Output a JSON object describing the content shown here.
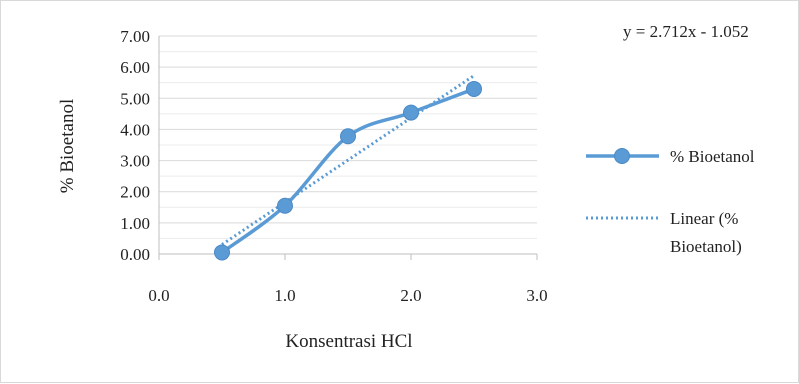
{
  "chart_data": {
    "type": "line",
    "xlabel": "Konsentrasi HCl",
    "ylabel": "% Bioetanol",
    "xlim": [
      0,
      3
    ],
    "ylim": [
      0,
      7
    ],
    "x_ticks": [
      "0.0",
      "1.0",
      "2.0",
      "3.0"
    ],
    "y_ticks": [
      "0.00",
      "1.00",
      "2.00",
      "3.00",
      "4.00",
      "5.00",
      "6.00",
      "7.00"
    ],
    "grid": "horizontal",
    "legend_position": "right",
    "series": [
      {
        "name": "% Bioetanol",
        "style": "smooth-line-with-markers",
        "color": "#5b9bd5",
        "x": [
          0.5,
          1.0,
          1.5,
          2.0,
          2.5
        ],
        "y": [
          0.05,
          1.55,
          3.78,
          4.54,
          5.3
        ]
      }
    ],
    "trendline": {
      "legend_line1": "Linear (%",
      "legend_line2": "Bioetanol)",
      "equation": "y = 2.712x - 1.052",
      "slope": 2.712,
      "intercept": -1.052,
      "x_range": [
        0.5,
        2.5
      ],
      "color": "#5b9bd5",
      "style": "dotted"
    }
  }
}
